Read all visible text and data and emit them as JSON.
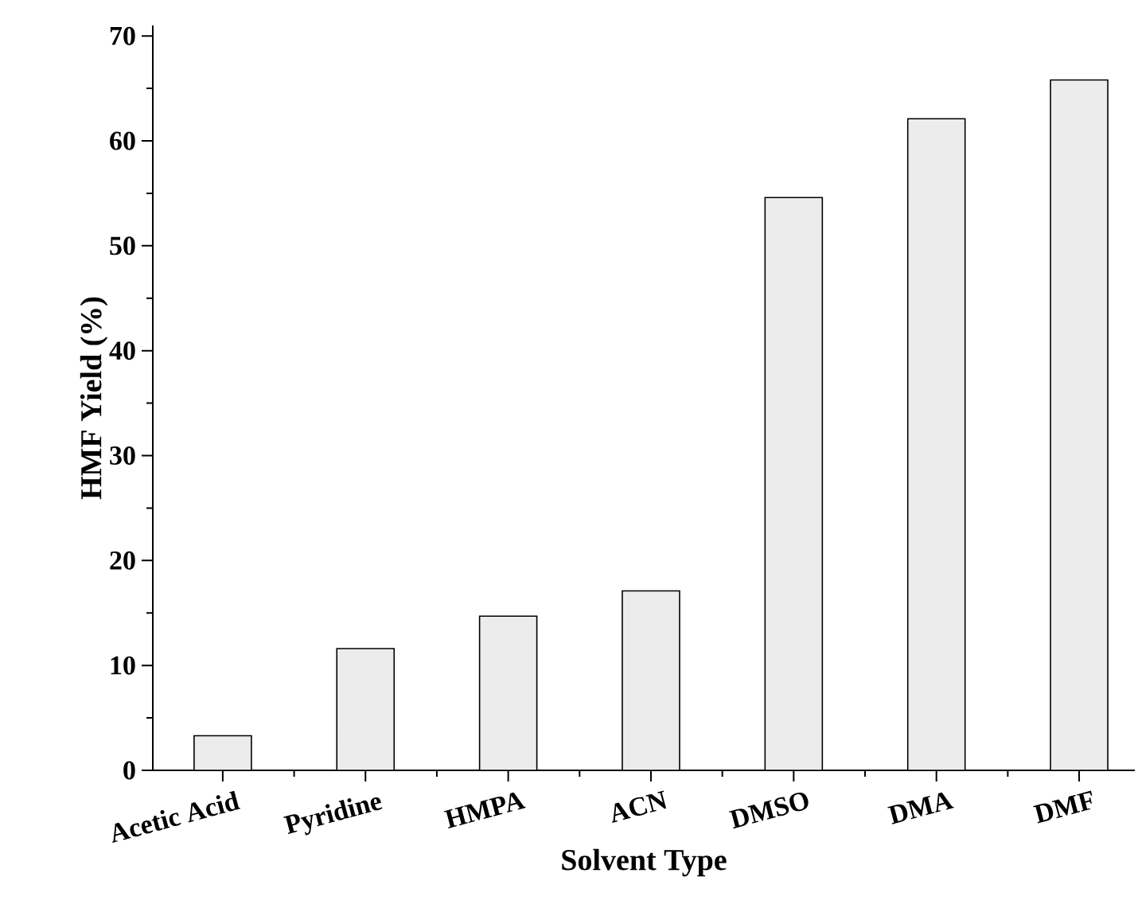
{
  "chart_data": {
    "type": "bar",
    "xlabel": "Solvent Type",
    "ylabel": "HMF Yield (%)",
    "categories": [
      "Acetic Acid",
      "Pyridine",
      "HMPA",
      "ACN",
      "DMSO",
      "DMA",
      "DMF"
    ],
    "values": [
      3.3,
      11.6,
      14.7,
      17.1,
      54.6,
      62.1,
      65.8
    ],
    "color": "#ececec",
    "ylim": [
      0,
      71
    ],
    "yticks": [
      0,
      10,
      20,
      30,
      40,
      50,
      60,
      70
    ]
  }
}
